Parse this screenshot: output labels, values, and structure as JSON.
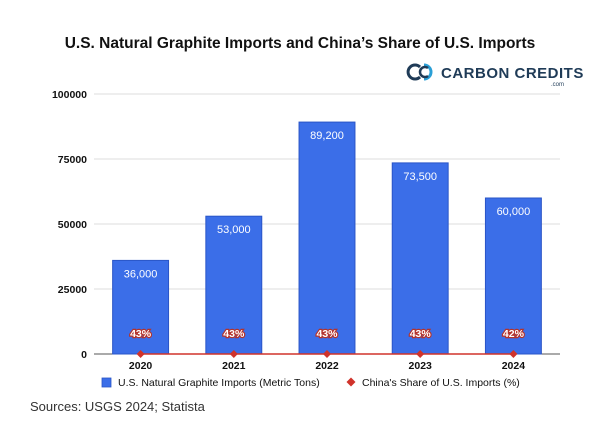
{
  "logo": {
    "text": "CARBON CREDITS",
    "sub": ".com",
    "color": "#1f3b57",
    "accent": "#2a9fd6"
  },
  "source": "Sources: USGS 2024; Statista",
  "chart_data": {
    "type": "bar",
    "title": "U.S. Natural Graphite Imports and China’s Share of U.S. Imports",
    "xlabel": "",
    "ylabel": "",
    "categories": [
      "2020",
      "2021",
      "2022",
      "2023",
      "2024"
    ],
    "ylim": [
      0,
      100000
    ],
    "yticks": [
      "0",
      "25000",
      "50000",
      "75000",
      "100000"
    ],
    "ytick_values": [
      0,
      25000,
      50000,
      75000,
      100000
    ],
    "grid": true,
    "legend_position": "bottom",
    "series": [
      {
        "name": "U.S. Natural Graphite Imports (Metric Tons)",
        "type": "bar",
        "color": "#3b6ee8",
        "values": [
          36000,
          53000,
          89200,
          73500,
          60000
        ],
        "labels": [
          "36,000",
          "53,000",
          "89,200",
          "73,500",
          "60,000"
        ]
      },
      {
        "name": "China's Share of U.S. Imports (%)",
        "type": "line",
        "color": "#d0332b",
        "values": [
          43,
          43,
          43,
          43,
          42
        ],
        "labels": [
          "43%",
          "43%",
          "43%",
          "43%",
          "42%"
        ]
      }
    ]
  }
}
